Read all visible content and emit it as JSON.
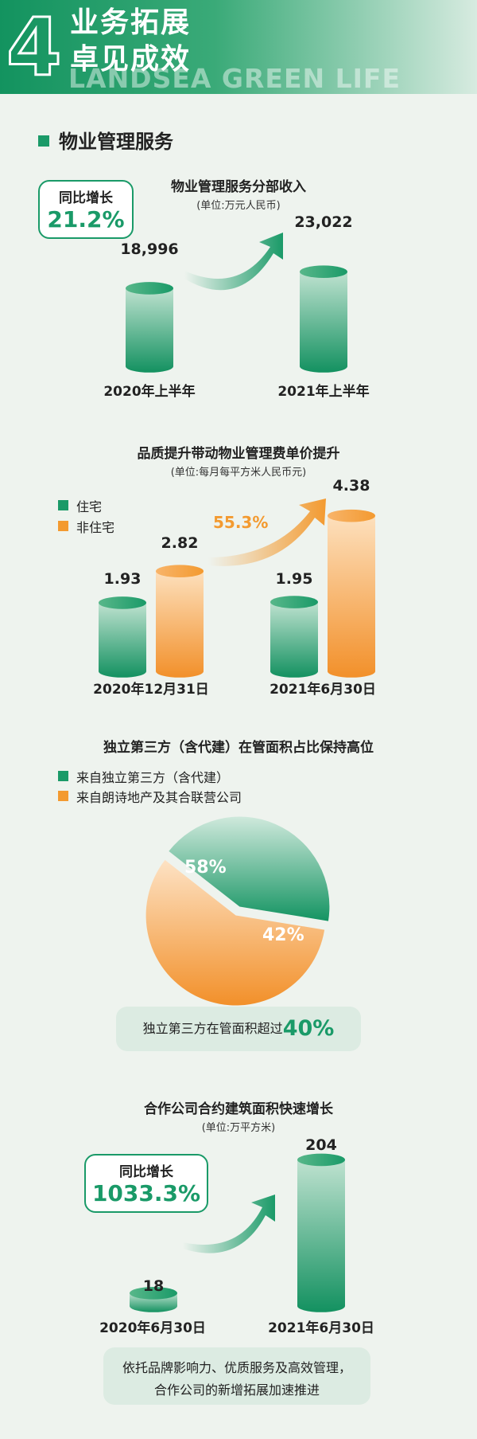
{
  "header": {
    "number": "4",
    "title_line1": "业务拓展",
    "title_line2": "卓见成效",
    "subtitle": "LANDSEA GREEN LIFE"
  },
  "section_title": "物业管理服务",
  "chart1": {
    "title": "物业管理服务分部收入",
    "unit": "(单位:万元人民币)",
    "badge_label": "同比增长",
    "badge_value": "21.2%",
    "value_labels": [
      "18,996",
      "23,022"
    ]
  },
  "chart2": {
    "title": "品质提升带动物业管理费单价提升",
    "unit": "(单位:每月每平方米人民币元)",
    "legend": [
      "住宅",
      "非住宅"
    ],
    "growth_label": "55.3%",
    "value_labels": [
      "1.93",
      "2.82",
      "1.95",
      "4.38"
    ]
  },
  "chart3": {
    "title": "独立第三方（含代建）在管面积占比保持高位",
    "legend": [
      "来自独立第三方（含代建）",
      "来自朗诗地产及其合联营公司"
    ],
    "labels": [
      "42%",
      "58%"
    ],
    "note_text": "独立第三方在管面积超过",
    "note_value": "40%"
  },
  "chart4": {
    "title": "合作公司合约建筑面积快速增长",
    "unit": "(单位:万平方米)",
    "badge_label": "同比增长",
    "badge_value": "1033.3%",
    "value_labels": [
      "18",
      "204"
    ],
    "note_line1": "依托品牌影响力、优质服务及高效管理，",
    "note_line2": "合作公司的新增拓展加速推进"
  },
  "chart_data": [
    {
      "type": "bar",
      "title": "物业管理服务分部收入",
      "categories": [
        "2020年上半年",
        "2021年上半年"
      ],
      "values": [
        18996,
        23022
      ],
      "ylabel": "(单位:万元人民币)",
      "colors": [
        "#1a9a68"
      ]
    },
    {
      "type": "bar",
      "title": "品质提升带动物业管理费单价提升",
      "categories": [
        "2020年12月31日",
        "2021年6月30日"
      ],
      "series": [
        {
          "name": "住宅",
          "values": [
            1.93,
            1.95
          ],
          "color": "#1a9a68"
        },
        {
          "name": "非住宅",
          "values": [
            2.82,
            4.38
          ],
          "color": "#f39a30"
        }
      ],
      "ylabel": "(单位:每月每平方米人民币元)"
    },
    {
      "type": "pie",
      "title": "独立第三方（含代建）在管面积占比保持高位",
      "categories": [
        "来自独立第三方（含代建）",
        "来自朗诗地产及其合联营公司"
      ],
      "values": [
        42,
        58
      ],
      "colors": [
        "#1a9a68",
        "#f39a30"
      ]
    },
    {
      "type": "bar",
      "title": "合作公司合约建筑面积快速增长",
      "categories": [
        "2020年6月30日",
        "2021年6月30日"
      ],
      "values": [
        18,
        204
      ],
      "ylabel": "(单位:万平方米)",
      "colors": [
        "#1a9a68"
      ]
    }
  ]
}
